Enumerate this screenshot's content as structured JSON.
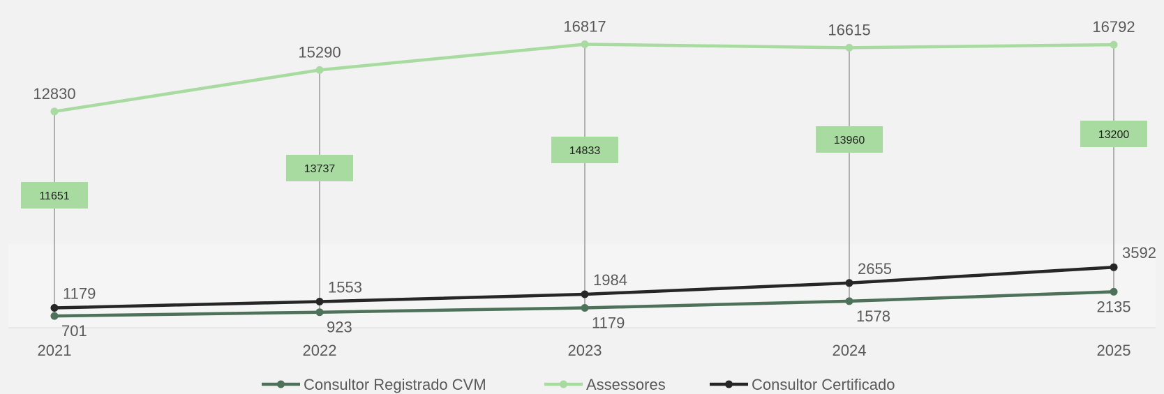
{
  "chart_data": {
    "type": "line",
    "categories": [
      "2021",
      "2022",
      "2023",
      "2024",
      "2025"
    ],
    "series": [
      {
        "name": "Consultor Registrado CVM",
        "values": [
          701,
          923,
          1179,
          1578,
          2135
        ],
        "color": "#4d7259"
      },
      {
        "name": "Assessores",
        "values": [
          12830,
          15290,
          16817,
          16615,
          16792
        ],
        "color": "#a8dba0"
      },
      {
        "name": "Consultor Certificado",
        "values": [
          1179,
          1553,
          1984,
          2655,
          3592
        ],
        "color": "#262626"
      }
    ],
    "box_labels": [
      11651,
      13737,
      14833,
      13960,
      13200
    ],
    "box_color": "#a8dba0",
    "ylim": [
      0,
      17500
    ],
    "legend_position": "bottom"
  }
}
